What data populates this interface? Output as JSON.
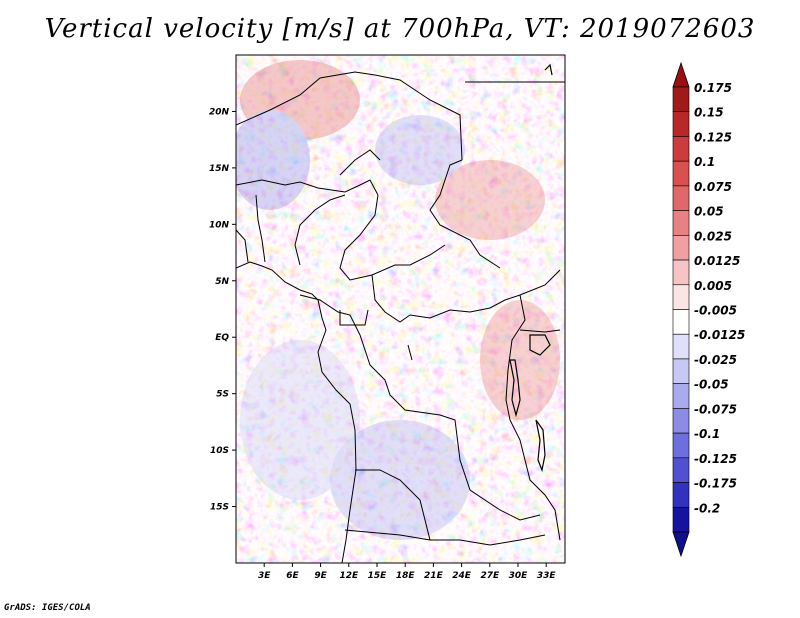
{
  "title": "Vertical velocity [m/s] at 700hPa, VT: 2019072603",
  "credit": "GrADS: IGES/COLA",
  "map": {
    "lat_labels": [
      "20N",
      "15N",
      "10N",
      "5N",
      "EQ",
      "5S",
      "10S",
      "15S"
    ],
    "lat_values": [
      20,
      15,
      10,
      5,
      0,
      -5,
      -10,
      -15
    ],
    "lon_labels": [
      "3E",
      "6E",
      "9E",
      "12E",
      "15E",
      "18E",
      "21E",
      "24E",
      "27E",
      "30E",
      "33E"
    ],
    "lon_values": [
      3,
      6,
      9,
      12,
      15,
      18,
      21,
      24,
      27,
      30,
      33
    ],
    "lat_range": [
      -20,
      25
    ],
    "lon_range": [
      0,
      35
    ]
  },
  "colorbar": {
    "labels": [
      "0.175",
      "0.15",
      "0.125",
      "0.1",
      "0.075",
      "0.05",
      "0.025",
      "0.0125",
      "0.005",
      "-0.005",
      "-0.0125",
      "-0.025",
      "-0.05",
      "-0.075",
      "-0.1",
      "-0.125",
      "-0.175",
      "-0.2"
    ],
    "colors": [
      "#a01a1a",
      "#b82828",
      "#cc3c3c",
      "#d85050",
      "#e06868",
      "#e88282",
      "#f0a0a0",
      "#f6c4c4",
      "#fbe4e4",
      "#ffffff",
      "#e0e0fa",
      "#c8c8f4",
      "#aaaaee",
      "#8c8ce6",
      "#6e6ede",
      "#5050d0",
      "#3232c0",
      "#1414a0"
    ],
    "top_arrow_color": "#9a1010",
    "bottom_arrow_color": "#10108c"
  }
}
